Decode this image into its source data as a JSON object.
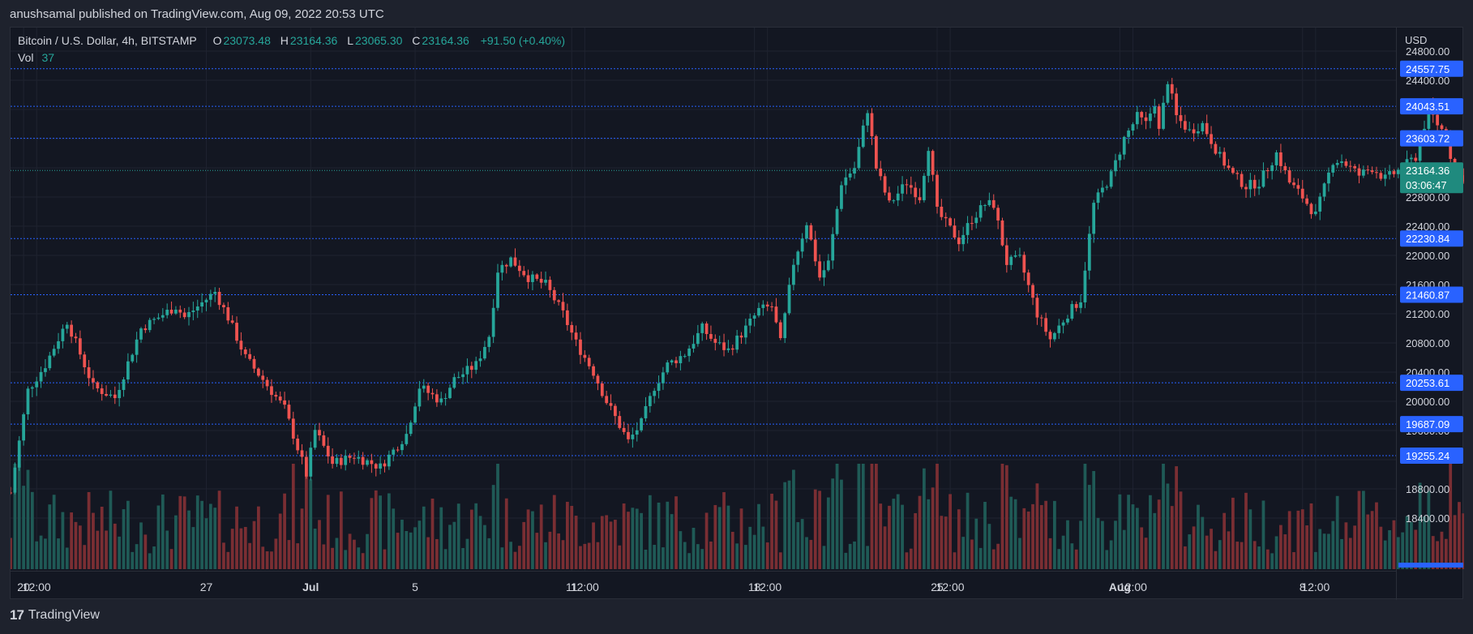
{
  "header": {
    "published": "anushsamal published on TradingView.com, Aug 09, 2022 20:53 UTC"
  },
  "legend": {
    "symbol": "Bitcoin / U.S. Dollar, 4h, BITSTAMP",
    "open_label": "O",
    "open": "23073.48",
    "high_label": "H",
    "high": "23164.36",
    "low_label": "L",
    "low": "23065.30",
    "close_label": "C",
    "close": "23164.36",
    "change": "+91.50 (+0.40%)",
    "vol_label": "Vol",
    "vol": "37"
  },
  "price_scale": {
    "currency": "USD",
    "current_price": "23164.36",
    "countdown": "03:06:47"
  },
  "footer": {
    "brand": "TradingView",
    "logo": "tradingview-logo-icon"
  },
  "colors": {
    "background": "#131722",
    "up": "#26a69a",
    "down": "#ef5350",
    "level_line": "#2962ff",
    "level_tag": "#2962ff"
  },
  "chart_data": {
    "type": "candlestick",
    "title": "Bitcoin / U.S. Dollar, 4h, BITSTAMP",
    "timeframe": "4h",
    "ylim": [
      17900,
      24900
    ],
    "y_ticks": [
      18400,
      18800,
      19200,
      19600,
      20000,
      20400,
      20800,
      21200,
      21600,
      22000,
      22400,
      22800,
      23200,
      23600,
      24000,
      24400,
      24800
    ],
    "x_ticks": [
      {
        "label": "20",
        "day": 0
      },
      {
        "label": "12:00",
        "day": 0.5
      },
      {
        "label": "27",
        "day": 7
      },
      {
        "label": "Jul",
        "day": 11
      },
      {
        "label": "5",
        "day": 15
      },
      {
        "label": "11",
        "day": 21
      },
      {
        "label": "12:00",
        "day": 21.5
      },
      {
        "label": "18",
        "day": 28
      },
      {
        "label": "12:00",
        "day": 28.5
      },
      {
        "label": "25",
        "day": 35
      },
      {
        "label": "12:00",
        "day": 35.5
      },
      {
        "label": "Aug",
        "day": 42
      },
      {
        "label": "12:00",
        "day": 42.5
      },
      {
        "label": "8",
        "day": 49
      },
      {
        "label": "12:00",
        "day": 49.5
      }
    ],
    "horizontal_levels": [
      24557.75,
      24043.51,
      23603.72,
      22230.84,
      21460.87,
      20253.61,
      19687.09,
      19255.24
    ],
    "current_price": 23164.36,
    "anchors": [
      {
        "date": "Jun 19 12:00",
        "price": 18750
      },
      {
        "date": "Jun 20 04:00",
        "price": 20150
      },
      {
        "date": "Jun 20 20:00",
        "price": 20500
      },
      {
        "date": "Jun 21 16:00",
        "price": 21100
      },
      {
        "date": "Jun 22 16:00",
        "price": 20200
      },
      {
        "date": "Jun 23 12:00",
        "price": 20050
      },
      {
        "date": "Jun 24 12:00",
        "price": 21000
      },
      {
        "date": "Jun 25 20:00",
        "price": 21300
      },
      {
        "date": "Jun 26 04:00",
        "price": 21150
      },
      {
        "date": "Jun 27 08:00",
        "price": 21500
      },
      {
        "date": "Jun 27 20:00",
        "price": 21150
      },
      {
        "date": "Jun 28 12:00",
        "price": 20600
      },
      {
        "date": "Jun 29 04:00",
        "price": 20300
      },
      {
        "date": "Jun 30 00:00",
        "price": 19900
      },
      {
        "date": "Jun 30 20:00",
        "price": 19000
      },
      {
        "date": "Jul 01 04:00",
        "price": 19600
      },
      {
        "date": "Jul 01 20:00",
        "price": 19150
      },
      {
        "date": "Jul 02 16:00",
        "price": 19250
      },
      {
        "date": "Jul 03 16:00",
        "price": 19100
      },
      {
        "date": "Jul 04 16:00",
        "price": 19550
      },
      {
        "date": "Jul 05 04:00",
        "price": 20200
      },
      {
        "date": "Jul 06 00:00",
        "price": 20000
      },
      {
        "date": "Jul 06 12:00",
        "price": 20300
      },
      {
        "date": "Jul 07 08:00",
        "price": 20500
      },
      {
        "date": "Jul 07 20:00",
        "price": 20900
      },
      {
        "date": "Jul 08 04:00",
        "price": 21800
      },
      {
        "date": "Jul 08 16:00",
        "price": 21950
      },
      {
        "date": "Jul 09 08:00",
        "price": 21700
      },
      {
        "date": "Jul 10 00:00",
        "price": 21600
      },
      {
        "date": "Jul 10 16:00",
        "price": 21200
      },
      {
        "date": "Jul 11 04:00",
        "price": 20800
      },
      {
        "date": "Jul 11 20:00",
        "price": 20400
      },
      {
        "date": "Jul 12 08:00",
        "price": 20000
      },
      {
        "date": "Jul 13 04:00",
        "price": 19450
      },
      {
        "date": "Jul 13 16:00",
        "price": 19700
      },
      {
        "date": "Jul 14 04:00",
        "price": 20200
      },
      {
        "date": "Jul 14 16:00",
        "price": 20500
      },
      {
        "date": "Jul 15 08:00",
        "price": 20650
      },
      {
        "date": "Jul 16 00:00",
        "price": 21000
      },
      {
        "date": "Jul 16 12:00",
        "price": 20800
      },
      {
        "date": "Jul 17 00:00",
        "price": 20700
      },
      {
        "date": "Jul 17 16:00",
        "price": 21000
      },
      {
        "date": "Jul 18 04:00",
        "price": 21250
      },
      {
        "date": "Jul 18 16:00",
        "price": 21300
      },
      {
        "date": "Jul 19 00:00",
        "price": 20800
      },
      {
        "date": "Jul 19 12:00",
        "price": 21900
      },
      {
        "date": "Jul 20 00:00",
        "price": 22450
      },
      {
        "date": "Jul 20 12:00",
        "price": 21700
      },
      {
        "date": "Jul 20 20:00",
        "price": 21900
      },
      {
        "date": "Jul 21 08:00",
        "price": 23000
      },
      {
        "date": "Jul 21 20:00",
        "price": 23200
      },
      {
        "date": "Jul 22 08:00",
        "price": 24000
      },
      {
        "date": "Jul 22 16:00",
        "price": 23200
      },
      {
        "date": "Jul 23 04:00",
        "price": 22700
      },
      {
        "date": "Jul 23 20:00",
        "price": 23000
      },
      {
        "date": "Jul 24 08:00",
        "price": 22800
      },
      {
        "date": "Jul 24 16:00",
        "price": 23500
      },
      {
        "date": "Jul 25 00:00",
        "price": 22600
      },
      {
        "date": "Jul 25 20:00",
        "price": 22200
      },
      {
        "date": "Jul 26 08:00",
        "price": 22500
      },
      {
        "date": "Jul 26 20:00",
        "price": 22700
      },
      {
        "date": "Jul 27 04:00",
        "price": 22700
      },
      {
        "date": "Jul 27 16:00",
        "price": 21900
      },
      {
        "date": "Jul 28 04:00",
        "price": 21950
      },
      {
        "date": "Jul 28 20:00",
        "price": 21200
      },
      {
        "date": "Jul 29 08:00",
        "price": 20850
      },
      {
        "date": "Jul 30 00:00",
        "price": 21200
      },
      {
        "date": "Jul 30 12:00",
        "price": 21400
      },
      {
        "date": "Jul 31 00:00",
        "price": 22700
      },
      {
        "date": "Jul 31 16:00",
        "price": 23100
      },
      {
        "date": "Aug 01 04:00",
        "price": 23600
      },
      {
        "date": "Aug 01 16:00",
        "price": 23900
      },
      {
        "date": "Aug 02 00:00",
        "price": 23800
      },
      {
        "date": "Aug 02 08:00",
        "price": 24100
      },
      {
        "date": "Aug 02 12:00",
        "price": 23700
      },
      {
        "date": "Aug 02 20:00",
        "price": 24400
      },
      {
        "date": "Aug 03 04:00",
        "price": 23900
      },
      {
        "date": "Aug 03 16:00",
        "price": 23700
      },
      {
        "date": "Aug 04 04:00",
        "price": 23800
      },
      {
        "date": "Aug 04 20:00",
        "price": 23350
      },
      {
        "date": "Aug 05 08:00",
        "price": 23100
      },
      {
        "date": "Aug 05 20:00",
        "price": 22950
      },
      {
        "date": "Aug 06 08:00",
        "price": 23000
      },
      {
        "date": "Aug 07 00:00",
        "price": 23400
      },
      {
        "date": "Aug 07 12:00",
        "price": 23000
      },
      {
        "date": "Aug 08 00:00",
        "price": 22800
      },
      {
        "date": "Aug 08 12:00",
        "price": 22550
      },
      {
        "date": "Aug 09 04:00",
        "price": 23300
      },
      {
        "date": "Aug 09 12:00",
        "price": 23300
      },
      {
        "date": "Aug 10 04:00",
        "price": 23100
      },
      {
        "date": "Aug 10 16:00",
        "price": 23200
      },
      {
        "date": "Aug 11 04:00",
        "price": 23050
      },
      {
        "date": "Aug 11 20:00",
        "price": 23200
      },
      {
        "date": "Aug 12 08:00",
        "price": 23350
      },
      {
        "date": "Aug 12 20:00",
        "price": 24000
      },
      {
        "date": "Aug 13 04:00",
        "price": 23800
      },
      {
        "date": "Aug 13 12:00",
        "price": 23650
      },
      {
        "date": "Aug 13 20:00",
        "price": 23100
      },
      {
        "date": "Aug 14 04:00",
        "price": 23073
      },
      {
        "date": "Aug 14 08:00",
        "price": 23164
      }
    ],
    "note_volume": "volume bars at bottom, colored by candle direction"
  }
}
